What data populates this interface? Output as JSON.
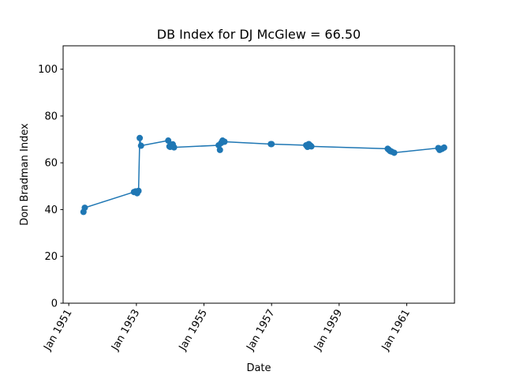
{
  "chart_data": {
    "type": "line",
    "title": "DB Index for DJ McGlew = 66.50",
    "xlabel": "Date",
    "ylabel": "Don Bradman Index",
    "ylim": [
      0,
      110
    ],
    "xlim": [
      "1950-11-01",
      "1962-06-01"
    ],
    "x_ticks": [
      {
        "date": "1951-01-01",
        "label": "Jan 1951"
      },
      {
        "date": "1953-01-01",
        "label": "Jan 1953"
      },
      {
        "date": "1955-01-01",
        "label": "Jan 1955"
      },
      {
        "date": "1957-01-01",
        "label": "Jan 1957"
      },
      {
        "date": "1959-01-01",
        "label": "Jan 1959"
      },
      {
        "date": "1961-01-01",
        "label": "Jan 1961"
      }
    ],
    "y_ticks": [
      0,
      20,
      40,
      60,
      80,
      100
    ],
    "grid": false,
    "marker": "circle",
    "series": [
      {
        "color": "#1f77b4",
        "points": [
          {
            "x": "1951-06-09",
            "y": 39.0
          },
          {
            "x": "1951-06-23",
            "y": 40.8
          },
          {
            "x": "1952-12-05",
            "y": 47.5
          },
          {
            "x": "1952-12-24",
            "y": 47.8
          },
          {
            "x": "1953-01-09",
            "y": 47.0
          },
          {
            "x": "1953-01-24",
            "y": 48.0
          },
          {
            "x": "1953-02-06",
            "y": 70.6
          },
          {
            "x": "1953-02-20",
            "y": 67.3
          },
          {
            "x": "1953-12-11",
            "y": 69.5
          },
          {
            "x": "1953-12-24",
            "y": 67.0
          },
          {
            "x": "1954-01-01",
            "y": 66.8
          },
          {
            "x": "1954-01-29",
            "y": 67.9
          },
          {
            "x": "1954-02-12",
            "y": 66.6
          },
          {
            "x": "1955-06-09",
            "y": 67.5
          },
          {
            "x": "1955-06-23",
            "y": 65.5
          },
          {
            "x": "1955-07-07",
            "y": 68.5
          },
          {
            "x": "1955-07-21",
            "y": 69.5
          },
          {
            "x": "1955-08-11",
            "y": 69.0
          },
          {
            "x": "1956-12-24",
            "y": 68.0
          },
          {
            "x": "1957-01-01",
            "y": 68.0
          },
          {
            "x": "1958-01-10",
            "y": 67.5
          },
          {
            "x": "1958-01-24",
            "y": 66.8
          },
          {
            "x": "1958-02-07",
            "y": 68.0
          },
          {
            "x": "1958-02-21",
            "y": 67.5
          },
          {
            "x": "1958-03-07",
            "y": 67.0
          },
          {
            "x": "1960-06-09",
            "y": 66.0
          },
          {
            "x": "1960-06-23",
            "y": 65.5
          },
          {
            "x": "1960-07-07",
            "y": 65.0
          },
          {
            "x": "1960-07-21",
            "y": 64.8
          },
          {
            "x": "1960-08-18",
            "y": 64.3
          },
          {
            "x": "1961-12-08",
            "y": 66.3
          },
          {
            "x": "1961-12-22",
            "y": 65.5
          },
          {
            "x": "1962-01-05",
            "y": 65.8
          },
          {
            "x": "1962-01-19",
            "y": 66.0
          },
          {
            "x": "1962-02-09",
            "y": 66.5
          }
        ]
      }
    ]
  }
}
